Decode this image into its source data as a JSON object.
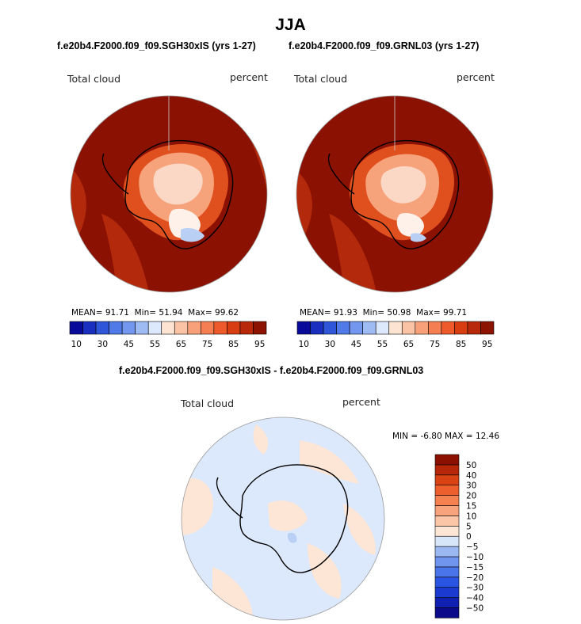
{
  "page": {
    "title": "JJA",
    "panel_left_subtitle": "f.e20b4.F2000.f09_f09.SGH30xIS (yrs 1-27)",
    "panel_right_subtitle": "f.e20b4.F2000.f09_f09.GRNL03 (yrs 1-27)",
    "diff_subtitle": "f.e20b4.F2000.f09_f09.SGH30xIS - f.e20b4.F2000.f09_f09.GRNL03"
  },
  "panels": [
    {
      "variable": "Total cloud",
      "units": "percent",
      "stats": {
        "mean_label": "MEAN=",
        "mean": "91.71",
        "min_label": "Min=",
        "min": "51.94",
        "max_label": "Max=",
        "max": "99.62"
      }
    },
    {
      "variable": "Total cloud",
      "units": "percent",
      "stats": {
        "mean_label": "MEAN=",
        "mean": "91.93",
        "min_label": "Min=",
        "min": "50.98",
        "max_label": "Max=",
        "max": "99.71"
      }
    }
  ],
  "top_colorbar": {
    "colors": [
      "#0a0a9a",
      "#1a2fc0",
      "#2f55d8",
      "#4f7ae8",
      "#7396ee",
      "#9fbbf4",
      "#dce8fb",
      "#fde3d2",
      "#fbc3a6",
      "#f8a07a",
      "#f57f52",
      "#ee5a2c",
      "#d83d12",
      "#b8280a",
      "#8c1202"
    ],
    "tick_labels": [
      "10",
      "30",
      "45",
      "55",
      "65",
      "75",
      "85",
      "95"
    ]
  },
  "diff_panel": {
    "variable": "Total cloud",
    "units": "percent",
    "stats": {
      "min_label": "MIN =",
      "min": "-6.80",
      "max_label": "MAX =",
      "max": "12.46"
    }
  },
  "diff_colorbar": {
    "colors": [
      "#0a0a8a",
      "#1020b0",
      "#1b3ad0",
      "#2a55e2",
      "#4a75ea",
      "#7095ee",
      "#9cb8f2",
      "#d8e6fa",
      "#fde6d6",
      "#fbc6a8",
      "#f8a37c",
      "#f58050",
      "#ee5f2e",
      "#d94314",
      "#b52708",
      "#8b1002"
    ],
    "tick_labels": [
      "−50",
      "−40",
      "−30",
      "−20",
      "−15",
      "−10",
      "−5",
      "0",
      "5",
      "10",
      "15",
      "20",
      "30",
      "40",
      "50"
    ]
  },
  "colors": {
    "ocean_high_cloud": "#8b1103",
    "ocean_mid": "#b3290b",
    "coast_orange": "#e0501e",
    "inland_light": "#f6a27a",
    "inland_pale": "#fbd8c5",
    "plateau_white": "#fdf1ea",
    "blue_patch": "#b9d0f4",
    "diff_background": "#dce8fb",
    "diff_positive": "#fde6d6",
    "coastline": "#000000"
  }
}
